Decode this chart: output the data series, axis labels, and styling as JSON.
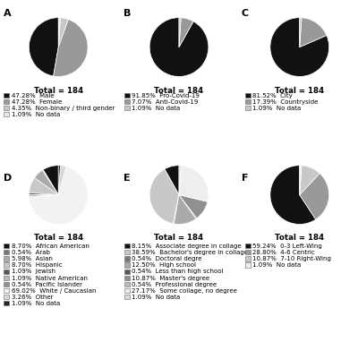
{
  "charts": [
    {
      "label": "A",
      "total": 184,
      "slices": [
        {
          "pct": 47.28,
          "color": "#111111",
          "legend": "47.28%  Male"
        },
        {
          "pct": 47.28,
          "color": "#999999",
          "legend": "47.28%  Female"
        },
        {
          "pct": 4.35,
          "color": "#c8c8c8",
          "legend": "4.35%  Non-binary / third gender"
        },
        {
          "pct": 1.09,
          "color": "#e8e8e8",
          "legend": "1.09%  No data"
        }
      ],
      "startangle": 90
    },
    {
      "label": "B",
      "total": 184,
      "slices": [
        {
          "pct": 91.85,
          "color": "#111111",
          "legend": "91.85%  Pro-Covid-19"
        },
        {
          "pct": 7.07,
          "color": "#999999",
          "legend": "7.07%  Anti-Covid-19"
        },
        {
          "pct": 1.09,
          "color": "#c8c8c8",
          "legend": "1.09%  No data"
        }
      ],
      "startangle": 90
    },
    {
      "label": "C",
      "total": 184,
      "slices": [
        {
          "pct": 81.52,
          "color": "#111111",
          "legend": "81.52%  City"
        },
        {
          "pct": 17.39,
          "color": "#999999",
          "legend": "17.39%  Countryside"
        },
        {
          "pct": 1.09,
          "color": "#c8c8c8",
          "legend": "1.09%  No data"
        }
      ],
      "startangle": 90
    },
    {
      "label": "D",
      "total": 184,
      "slices": [
        {
          "pct": 8.7,
          "color": "#111111",
          "legend": "8.70%  African American"
        },
        {
          "pct": 0.54,
          "color": "#777777",
          "legend": "0.54%  Arab"
        },
        {
          "pct": 5.98,
          "color": "#aaaaaa",
          "legend": "5.98%  Asian"
        },
        {
          "pct": 8.7,
          "color": "#c8c8c8",
          "legend": "8.70%  Hispanic"
        },
        {
          "pct": 1.09,
          "color": "#555555",
          "legend": "1.09%  Jewish"
        },
        {
          "pct": 1.09,
          "color": "#bbbbbb",
          "legend": "1.09%  Native American"
        },
        {
          "pct": 0.54,
          "color": "#909090",
          "legend": "0.54%  Pacific Islander"
        },
        {
          "pct": 69.02,
          "color": "#f2f2f2",
          "legend": "69.02%  White / Caucasian"
        },
        {
          "pct": 3.26,
          "color": "#d8d8d8",
          "legend": "3.26%  Other"
        },
        {
          "pct": 1.09,
          "color": "#222222",
          "legend": "1.09%  No data"
        }
      ],
      "startangle": 90
    },
    {
      "label": "E",
      "total": 184,
      "slices": [
        {
          "pct": 8.15,
          "color": "#111111",
          "legend": "8.15%  Associate degree in collage"
        },
        {
          "pct": 38.59,
          "color": "#c8c8c8",
          "legend": "38.59%  Bachelor's degree in collage"
        },
        {
          "pct": 0.54,
          "color": "#777777",
          "legend": "0.54%  Doctoral degre"
        },
        {
          "pct": 12.5,
          "color": "#aaaaaa",
          "legend": "12.50%  High school"
        },
        {
          "pct": 0.54,
          "color": "#555555",
          "legend": "0.54%  Less than high school"
        },
        {
          "pct": 10.87,
          "color": "#909090",
          "legend": "10.87%  Master's degree"
        },
        {
          "pct": 0.54,
          "color": "#bbbbbb",
          "legend": "0.54%  Professional degree"
        },
        {
          "pct": 27.17,
          "color": "#eeeeee",
          "legend": "27.17%  Some collage, no degree"
        },
        {
          "pct": 1.09,
          "color": "#d8d8d8",
          "legend": "1.09%  No data"
        }
      ],
      "startangle": 90
    },
    {
      "label": "F",
      "total": 184,
      "slices": [
        {
          "pct": 59.24,
          "color": "#111111",
          "legend": "59.24%  0-3 Left-Wing"
        },
        {
          "pct": 28.8,
          "color": "#999999",
          "legend": "28.80%  4-6 Centric"
        },
        {
          "pct": 10.87,
          "color": "#c8c8c8",
          "legend": "10.87%  7-10 Right-Wing"
        },
        {
          "pct": 1.09,
          "color": "#eeeeee",
          "legend": "1.09%  No data"
        }
      ],
      "startangle": 90
    }
  ],
  "background_color": "#ffffff",
  "legend_fontsize": 5.0,
  "panel_label_fontsize": 8,
  "total_fontsize": 6.2,
  "pie_edge_color": "#ffffff",
  "pie_edge_width": 0.5
}
